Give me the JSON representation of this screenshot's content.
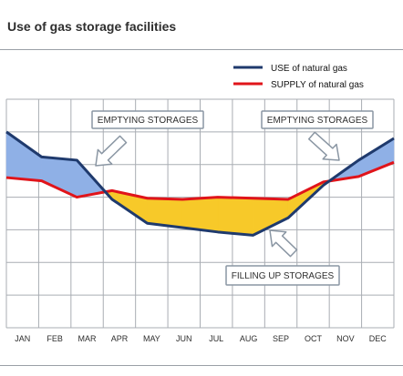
{
  "title": "Use of gas storage facilities",
  "colors": {
    "use_line": "#1f3a6d",
    "supply_line": "#e0141a",
    "emptying_fill": "#8fb0e6",
    "filling_fill": "#f7c929",
    "grid": "#a9adb3",
    "box_border": "#8a96a3",
    "arrow_fill": "#ffffff"
  },
  "chart_data": {
    "type": "line",
    "categories": [
      "JAN",
      "FEB",
      "MAR",
      "APR",
      "MAY",
      "JUN",
      "JUL",
      "AUG",
      "SEP",
      "OCT",
      "NOV",
      "DEC"
    ],
    "series": [
      {
        "name": "USE of natural gas",
        "values": [
          0.75,
          0.52,
          0.49,
          0.13,
          -0.09,
          -0.13,
          -0.17,
          -0.2,
          -0.04,
          0.26,
          0.49,
          0.69
        ]
      },
      {
        "name": "SUPPLY of natural gas",
        "values": [
          0.33,
          0.3,
          0.15,
          0.21,
          0.14,
          0.13,
          0.15,
          0.14,
          0.13,
          0.29,
          0.34,
          0.47
        ]
      }
    ],
    "x_range": [
      "JAN",
      "DEC"
    ],
    "ylim": [
      -1.05,
      1.05
    ],
    "grid": true,
    "legend_position": "top-right",
    "annotations": [
      "EMPTYING STORAGES",
      "EMPTYING STORAGES",
      "FILLING UP STORAGES"
    ],
    "shading": [
      {
        "between": [
          "USE of natural gas",
          "SUPPLY of natural gas"
        ],
        "where": "use above supply",
        "color": "#8fb0e6"
      },
      {
        "between": [
          "USE of natural gas",
          "SUPPLY of natural gas"
        ],
        "where": "use below supply",
        "color": "#f7c929"
      }
    ]
  }
}
